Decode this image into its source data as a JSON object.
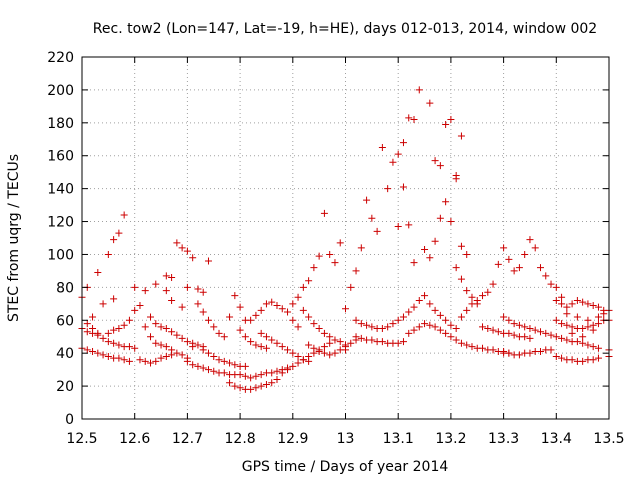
{
  "chart_data": {
    "type": "scatter",
    "title": "Rec. tow2 (Lon=147, Lat=-19, h=HE), days 012-013, 2014, window 002",
    "xlabel": "GPS time / Days of year 2014",
    "ylabel": "STEC from uqrg / TECUs",
    "xlim": [
      12.5,
      13.5
    ],
    "ylim": [
      0,
      220
    ],
    "xticks": [
      12.5,
      12.6,
      12.7,
      12.8,
      12.9,
      13,
      13.1,
      13.2,
      13.3,
      13.4,
      13.5
    ],
    "xtick_labels": [
      "12.5",
      "12.6",
      "12.7",
      "12.8",
      "12.9",
      "13",
      "13.1",
      "13.2",
      "13.3",
      "13.4",
      "13.5"
    ],
    "yticks": [
      0,
      20,
      40,
      60,
      80,
      100,
      120,
      140,
      160,
      180,
      200,
      220
    ],
    "ytick_labels": [
      "0",
      "20",
      "40",
      "60",
      "80",
      "100",
      "120",
      "140",
      "160",
      "180",
      "200",
      "220"
    ],
    "grid": true,
    "marker": "plus",
    "color": "#cc0000",
    "points": [
      [
        12.5,
        74
      ],
      [
        12.51,
        80
      ],
      [
        12.53,
        89
      ],
      [
        12.55,
        100
      ],
      [
        12.56,
        109
      ],
      [
        12.57,
        113
      ],
      [
        12.58,
        124
      ],
      [
        12.56,
        73
      ],
      [
        12.52,
        62
      ],
      [
        12.54,
        70
      ],
      [
        12.51,
        58
      ],
      [
        12.52,
        55
      ],
      [
        12.53,
        52
      ],
      [
        12.54,
        49
      ],
      [
        12.55,
        47
      ],
      [
        12.56,
        46
      ],
      [
        12.57,
        45
      ],
      [
        12.58,
        44
      ],
      [
        12.59,
        44
      ],
      [
        12.6,
        43
      ],
      [
        12.5,
        43
      ],
      [
        12.51,
        42
      ],
      [
        12.52,
        41
      ],
      [
        12.53,
        40
      ],
      [
        12.54,
        39
      ],
      [
        12.55,
        38
      ],
      [
        12.56,
        37
      ],
      [
        12.57,
        37
      ],
      [
        12.58,
        36
      ],
      [
        12.59,
        35
      ],
      [
        12.5,
        55
      ],
      [
        12.51,
        53
      ],
      [
        12.52,
        52
      ],
      [
        12.53,
        51
      ],
      [
        12.55,
        52
      ],
      [
        12.56,
        54
      ],
      [
        12.57,
        55
      ],
      [
        12.58,
        57
      ],
      [
        12.59,
        60
      ],
      [
        12.6,
        66
      ],
      [
        12.6,
        80
      ],
      [
        12.62,
        78
      ],
      [
        12.61,
        69
      ],
      [
        12.63,
        62
      ],
      [
        12.62,
        56
      ],
      [
        12.63,
        50
      ],
      [
        12.64,
        46
      ],
      [
        12.65,
        45
      ],
      [
        12.66,
        44
      ],
      [
        12.67,
        42
      ],
      [
        12.61,
        36
      ],
      [
        12.62,
        35
      ],
      [
        12.63,
        34
      ],
      [
        12.64,
        35
      ],
      [
        12.65,
        37
      ],
      [
        12.66,
        38
      ],
      [
        12.67,
        39
      ],
      [
        12.68,
        40
      ],
      [
        12.69,
        39
      ],
      [
        12.7,
        37
      ],
      [
        12.64,
        82
      ],
      [
        12.66,
        87
      ],
      [
        12.67,
        86
      ],
      [
        12.68,
        107
      ],
      [
        12.69,
        104
      ],
      [
        12.7,
        102
      ],
      [
        12.71,
        98
      ],
      [
        12.66,
        78
      ],
      [
        12.67,
        72
      ],
      [
        12.69,
        68
      ],
      [
        12.64,
        58
      ],
      [
        12.65,
        56
      ],
      [
        12.66,
        55
      ],
      [
        12.67,
        53
      ],
      [
        12.68,
        51
      ],
      [
        12.69,
        49
      ],
      [
        12.7,
        47
      ],
      [
        12.71,
        46
      ],
      [
        12.72,
        45
      ],
      [
        12.73,
        44
      ],
      [
        12.7,
        80
      ],
      [
        12.72,
        79
      ],
      [
        12.73,
        77
      ],
      [
        12.74,
        96
      ],
      [
        12.72,
        70
      ],
      [
        12.73,
        65
      ],
      [
        12.74,
        60
      ],
      [
        12.75,
        56
      ],
      [
        12.76,
        52
      ],
      [
        12.77,
        50
      ],
      [
        12.7,
        35
      ],
      [
        12.71,
        33
      ],
      [
        12.72,
        32
      ],
      [
        12.73,
        31
      ],
      [
        12.74,
        30
      ],
      [
        12.75,
        29
      ],
      [
        12.76,
        28
      ],
      [
        12.77,
        28
      ],
      [
        12.78,
        27
      ],
      [
        12.79,
        27
      ],
      [
        12.71,
        44
      ],
      [
        12.73,
        42
      ],
      [
        12.74,
        40
      ],
      [
        12.75,
        38
      ],
      [
        12.76,
        36
      ],
      [
        12.77,
        35
      ],
      [
        12.78,
        34
      ],
      [
        12.79,
        33
      ],
      [
        12.8,
        32
      ],
      [
        12.81,
        32
      ],
      [
        12.78,
        62
      ],
      [
        12.79,
        75
      ],
      [
        12.8,
        68
      ],
      [
        12.81,
        60
      ],
      [
        12.8,
        54
      ],
      [
        12.81,
        50
      ],
      [
        12.82,
        47
      ],
      [
        12.83,
        45
      ],
      [
        12.84,
        44
      ],
      [
        12.85,
        43
      ],
      [
        12.78,
        22
      ],
      [
        12.79,
        20
      ],
      [
        12.8,
        19
      ],
      [
        12.81,
        18
      ],
      [
        12.82,
        18
      ],
      [
        12.83,
        19
      ],
      [
        12.84,
        20
      ],
      [
        12.85,
        21
      ],
      [
        12.86,
        22
      ],
      [
        12.87,
        24
      ],
      [
        12.8,
        27
      ],
      [
        12.81,
        26
      ],
      [
        12.82,
        25
      ],
      [
        12.83,
        26
      ],
      [
        12.84,
        27
      ],
      [
        12.85,
        28
      ],
      [
        12.86,
        28
      ],
      [
        12.87,
        29
      ],
      [
        12.88,
        30
      ],
      [
        12.89,
        31
      ],
      [
        12.82,
        60
      ],
      [
        12.83,
        63
      ],
      [
        12.84,
        66
      ],
      [
        12.85,
        70
      ],
      [
        12.86,
        71
      ],
      [
        12.87,
        69
      ],
      [
        12.88,
        67
      ],
      [
        12.89,
        65
      ],
      [
        12.9,
        60
      ],
      [
        12.91,
        56
      ],
      [
        12.84,
        52
      ],
      [
        12.85,
        50
      ],
      [
        12.86,
        48
      ],
      [
        12.87,
        46
      ],
      [
        12.88,
        44
      ],
      [
        12.89,
        42
      ],
      [
        12.9,
        40
      ],
      [
        12.91,
        38
      ],
      [
        12.92,
        36
      ],
      [
        12.93,
        35
      ],
      [
        12.88,
        28
      ],
      [
        12.89,
        30
      ],
      [
        12.9,
        32
      ],
      [
        12.91,
        34
      ],
      [
        12.92,
        36
      ],
      [
        12.93,
        38
      ],
      [
        12.94,
        40
      ],
      [
        12.95,
        42
      ],
      [
        12.96,
        44
      ],
      [
        12.97,
        46
      ],
      [
        12.9,
        70
      ],
      [
        12.91,
        74
      ],
      [
        12.92,
        80
      ],
      [
        12.93,
        84
      ],
      [
        12.94,
        92
      ],
      [
        12.95,
        99
      ],
      [
        12.96,
        125
      ],
      [
        12.97,
        100
      ],
      [
        12.98,
        95
      ],
      [
        12.99,
        107
      ],
      [
        12.92,
        66
      ],
      [
        12.93,
        62
      ],
      [
        12.94,
        58
      ],
      [
        12.95,
        55
      ],
      [
        12.96,
        52
      ],
      [
        12.97,
        50
      ],
      [
        12.98,
        48
      ],
      [
        12.99,
        47
      ],
      [
        13,
        45
      ],
      [
        13.0,
        42
      ],
      [
        12.93,
        45
      ],
      [
        12.94,
        43
      ],
      [
        12.95,
        41
      ],
      [
        12.96,
        40
      ],
      [
        12.97,
        39
      ],
      [
        12.98,
        40
      ],
      [
        12.99,
        42
      ],
      [
        13.0,
        44
      ],
      [
        13.01,
        46
      ],
      [
        13.02,
        48
      ],
      [
        13.0,
        67
      ],
      [
        13.01,
        80
      ],
      [
        13.02,
        90
      ],
      [
        13.03,
        104
      ],
      [
        13.04,
        133
      ],
      [
        13.05,
        122
      ],
      [
        13.06,
        114
      ],
      [
        13.07,
        165
      ],
      [
        13.08,
        140
      ],
      [
        13.09,
        156
      ],
      [
        13.1,
        161
      ],
      [
        13.11,
        168
      ],
      [
        13.12,
        183
      ],
      [
        13.13,
        182
      ],
      [
        13.14,
        200
      ],
      [
        13.16,
        192
      ],
      [
        13.17,
        157
      ],
      [
        13.18,
        154
      ],
      [
        13.19,
        179
      ],
      [
        13.2,
        182
      ],
      [
        13.1,
        117
      ],
      [
        13.11,
        141
      ],
      [
        13.12,
        118
      ],
      [
        13.13,
        95
      ],
      [
        13.15,
        103
      ],
      [
        13.16,
        98
      ],
      [
        13.17,
        108
      ],
      [
        13.18,
        122
      ],
      [
        13.19,
        132
      ],
      [
        13.21,
        148
      ],
      [
        13.22,
        172
      ],
      [
        13.21,
        146
      ],
      [
        13.2,
        120
      ],
      [
        13.22,
        105
      ],
      [
        13.23,
        100
      ],
      [
        13.21,
        92
      ],
      [
        13.22,
        85
      ],
      [
        13.23,
        78
      ],
      [
        13.24,
        74
      ],
      [
        13.25,
        70
      ],
      [
        13.02,
        60
      ],
      [
        13.03,
        58
      ],
      [
        13.04,
        57
      ],
      [
        13.05,
        56
      ],
      [
        13.06,
        55
      ],
      [
        13.07,
        55
      ],
      [
        13.08,
        56
      ],
      [
        13.09,
        58
      ],
      [
        13.1,
        60
      ],
      [
        13.11,
        62
      ],
      [
        13.02,
        50
      ],
      [
        13.03,
        49
      ],
      [
        13.04,
        48
      ],
      [
        13.05,
        48
      ],
      [
        13.06,
        47
      ],
      [
        13.07,
        47
      ],
      [
        13.08,
        46
      ],
      [
        13.09,
        46
      ],
      [
        13.1,
        46
      ],
      [
        13.11,
        47
      ],
      [
        13.12,
        65
      ],
      [
        13.13,
        68
      ],
      [
        13.14,
        72
      ],
      [
        13.15,
        75
      ],
      [
        13.16,
        70
      ],
      [
        13.17,
        66
      ],
      [
        13.18,
        63
      ],
      [
        13.19,
        60
      ],
      [
        13.2,
        57
      ],
      [
        13.21,
        55
      ],
      [
        13.12,
        52
      ],
      [
        13.13,
        54
      ],
      [
        13.14,
        56
      ],
      [
        13.15,
        58
      ],
      [
        13.16,
        57
      ],
      [
        13.17,
        56
      ],
      [
        13.18,
        54
      ],
      [
        13.19,
        52
      ],
      [
        13.2,
        50
      ],
      [
        13.21,
        48
      ],
      [
        13.22,
        46
      ],
      [
        13.23,
        45
      ],
      [
        13.24,
        44
      ],
      [
        13.25,
        43
      ],
      [
        13.26,
        43
      ],
      [
        13.27,
        42
      ],
      [
        13.28,
        42
      ],
      [
        13.29,
        41
      ],
      [
        13.3,
        41
      ],
      [
        13.31,
        40
      ],
      [
        13.22,
        62
      ],
      [
        13.23,
        66
      ],
      [
        13.24,
        70
      ],
      [
        13.25,
        72
      ],
      [
        13.26,
        75
      ],
      [
        13.27,
        77
      ],
      [
        13.28,
        82
      ],
      [
        13.29,
        94
      ],
      [
        13.3,
        104
      ],
      [
        13.31,
        97
      ],
      [
        13.26,
        56
      ],
      [
        13.27,
        55
      ],
      [
        13.28,
        54
      ],
      [
        13.29,
        53
      ],
      [
        13.3,
        52
      ],
      [
        13.31,
        52
      ],
      [
        13.32,
        51
      ],
      [
        13.33,
        50
      ],
      [
        13.34,
        50
      ],
      [
        13.35,
        49
      ],
      [
        13.32,
        90
      ],
      [
        13.33,
        92
      ],
      [
        13.34,
        100
      ],
      [
        13.35,
        109
      ],
      [
        13.36,
        104
      ],
      [
        13.37,
        92
      ],
      [
        13.38,
        87
      ],
      [
        13.39,
        82
      ],
      [
        13.4,
        80
      ],
      [
        13.41,
        74
      ],
      [
        13.3,
        62
      ],
      [
        13.31,
        60
      ],
      [
        13.32,
        58
      ],
      [
        13.33,
        57
      ],
      [
        13.34,
        56
      ],
      [
        13.35,
        55
      ],
      [
        13.36,
        54
      ],
      [
        13.37,
        53
      ],
      [
        13.38,
        52
      ],
      [
        13.39,
        51
      ],
      [
        13.3,
        40
      ],
      [
        13.31,
        40
      ],
      [
        13.32,
        39
      ],
      [
        13.33,
        39
      ],
      [
        13.34,
        40
      ],
      [
        13.35,
        40
      ],
      [
        13.36,
        41
      ],
      [
        13.37,
        41
      ],
      [
        13.38,
        42
      ],
      [
        13.39,
        42
      ],
      [
        13.4,
        72
      ],
      [
        13.41,
        70
      ],
      [
        13.42,
        68
      ],
      [
        13.43,
        70
      ],
      [
        13.44,
        72
      ],
      [
        13.45,
        71
      ],
      [
        13.46,
        70
      ],
      [
        13.47,
        69
      ],
      [
        13.48,
        68
      ],
      [
        13.49,
        66
      ],
      [
        13.4,
        60
      ],
      [
        13.41,
        58
      ],
      [
        13.42,
        57
      ],
      [
        13.43,
        56
      ],
      [
        13.44,
        55
      ],
      [
        13.45,
        55
      ],
      [
        13.46,
        56
      ],
      [
        13.47,
        57
      ],
      [
        13.48,
        58
      ],
      [
        13.49,
        60
      ],
      [
        13.4,
        50
      ],
      [
        13.41,
        49
      ],
      [
        13.42,
        48
      ],
      [
        13.43,
        47
      ],
      [
        13.44,
        47
      ],
      [
        13.45,
        46
      ],
      [
        13.46,
        45
      ],
      [
        13.47,
        44
      ],
      [
        13.48,
        43
      ],
      [
        13.5,
        42
      ],
      [
        13.4,
        38
      ],
      [
        13.41,
        37
      ],
      [
        13.42,
        36
      ],
      [
        13.43,
        36
      ],
      [
        13.44,
        35
      ],
      [
        13.45,
        35
      ],
      [
        13.46,
        36
      ],
      [
        13.47,
        36
      ],
      [
        13.48,
        37
      ],
      [
        13.5,
        38
      ],
      [
        13.42,
        64
      ],
      [
        13.44,
        62
      ],
      [
        13.46,
        60
      ],
      [
        13.48,
        62
      ],
      [
        13.49,
        64
      ],
      [
        13.5,
        66
      ],
      [
        13.5,
        60
      ],
      [
        13.47,
        54
      ],
      [
        13.45,
        50
      ],
      [
        13.43,
        52
      ]
    ]
  }
}
